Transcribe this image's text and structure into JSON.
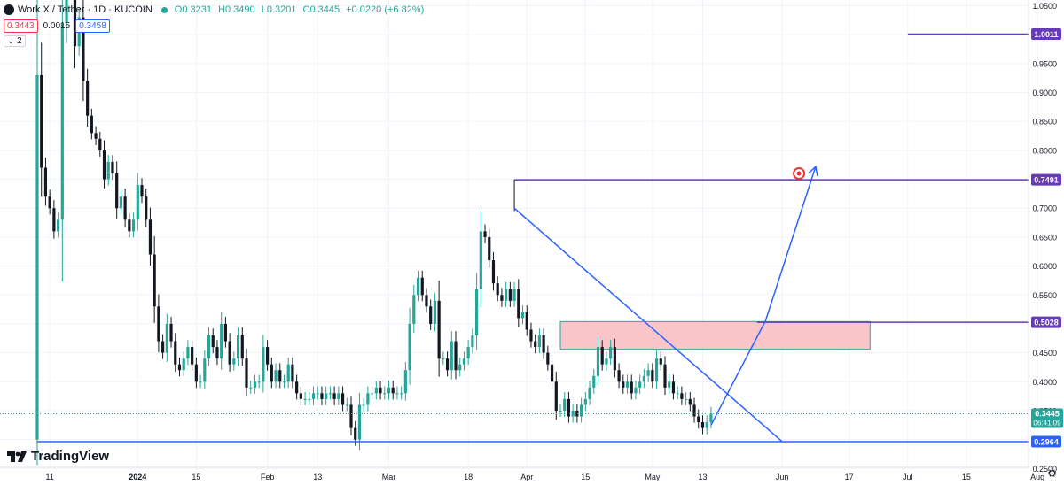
{
  "header": {
    "symbol": "Work X / Tether · 1D · KUCOIN",
    "open": "O0.3231",
    "high": "H0.3490",
    "low": "L0.3201",
    "close": "C0.3445",
    "change": "+0.0220 (+6.82%)",
    "sell_price": "0.3443",
    "spread": "0.0015",
    "buy_price": "0.3458",
    "indicator_count": "2"
  },
  "branding": {
    "name": "TradingView"
  },
  "colors": {
    "up": "#26a69a",
    "down": "#131722",
    "drawing": "#2962ff",
    "level": "#673ab7",
    "zone": "#f8bbc0",
    "zone_border": "#26a69a"
  },
  "chart_data": {
    "type": "candlestick",
    "symbol": "Work X / Tether",
    "timeframe": "1D",
    "exchange": "KUCOIN",
    "y_axis": {
      "range": [
        0.252,
        1.06
      ],
      "ticks": [
        "1.0500",
        "1.0000",
        "0.9500",
        "0.9000",
        "0.8500",
        "0.8000",
        "0.7500",
        "0.7000",
        "0.6500",
        "0.6000",
        "0.5500",
        "0.5000",
        "0.4500",
        "0.4000",
        "0.3500",
        "0.3000",
        "0.2500"
      ]
    },
    "x_axis": {
      "ticks": [
        {
          "label": "11",
          "index": 3
        },
        {
          "label": "2024",
          "index": 24
        },
        {
          "label": "15",
          "index": 38
        },
        {
          "label": "Feb",
          "index": 55
        },
        {
          "label": "13",
          "index": 67
        },
        {
          "label": "Mar",
          "index": 84
        },
        {
          "label": "18",
          "index": 103
        },
        {
          "label": "Apr",
          "index": 117
        },
        {
          "label": "15",
          "index": 131
        },
        {
          "label": "May",
          "index": 147
        },
        {
          "label": "13",
          "index": 159
        },
        {
          "label": "Jun",
          "index": 178
        },
        {
          "label": "17",
          "index": 194
        },
        {
          "label": "Jul",
          "index": 208
        },
        {
          "label": "15",
          "index": 222
        },
        {
          "label": "Aug",
          "index": 239
        }
      ]
    },
    "close_series": [
      0.93,
      0.77,
      0.72,
      0.7,
      0.66,
      0.68,
      1.02,
      1.13,
      1.1,
      0.98,
      1.03,
      0.92,
      0.86,
      0.83,
      0.82,
      0.8,
      0.75,
      0.78,
      0.76,
      0.7,
      0.72,
      0.68,
      0.66,
      0.68,
      0.74,
      0.72,
      0.68,
      0.62,
      0.53,
      0.47,
      0.45,
      0.5,
      0.47,
      0.43,
      0.42,
      0.44,
      0.46,
      0.43,
      0.4,
      0.4,
      0.44,
      0.48,
      0.46,
      0.44,
      0.5,
      0.47,
      0.43,
      0.44,
      0.48,
      0.44,
      0.39,
      0.39,
      0.4,
      0.4,
      0.46,
      0.43,
      0.4,
      0.42,
      0.4,
      0.4,
      0.43,
      0.4,
      0.38,
      0.37,
      0.37,
      0.37,
      0.38,
      0.38,
      0.37,
      0.38,
      0.38,
      0.37,
      0.38,
      0.36,
      0.36,
      0.32,
      0.3,
      0.36,
      0.36,
      0.38,
      0.38,
      0.39,
      0.38,
      0.38,
      0.39,
      0.38,
      0.38,
      0.38,
      0.42,
      0.5,
      0.55,
      0.58,
      0.55,
      0.53,
      0.5,
      0.54,
      0.44,
      0.44,
      0.42,
      0.47,
      0.42,
      0.43,
      0.44,
      0.46,
      0.48,
      0.56,
      0.66,
      0.65,
      0.61,
      0.57,
      0.55,
      0.54,
      0.56,
      0.54,
      0.56,
      0.51,
      0.52,
      0.49,
      0.47,
      0.46,
      0.48,
      0.45,
      0.43,
      0.4,
      0.35,
      0.35,
      0.37,
      0.34,
      0.35,
      0.34,
      0.36,
      0.37,
      0.39,
      0.41,
      0.46,
      0.43,
      0.44,
      0.46,
      0.42,
      0.4,
      0.39,
      0.4,
      0.38,
      0.39,
      0.4,
      0.41,
      0.42,
      0.4,
      0.44,
      0.43,
      0.39,
      0.4,
      0.38,
      0.38,
      0.37,
      0.37,
      0.36,
      0.34,
      0.33,
      0.32,
      0.33,
      0.3445
    ],
    "current_price": {
      "label": "0.3445",
      "countdown": "06:41:09",
      "value": 0.3445
    },
    "levels": [
      {
        "label": "1.0011",
        "value": 1.0011,
        "from_index": 208
      },
      {
        "label": "0.7491",
        "value": 0.7491,
        "from_index": 114
      },
      {
        "label": "0.5028",
        "value": 0.5028,
        "from_index": 172
      },
      {
        "label": "0.2964",
        "value": 0.2964,
        "from_index": 0
      }
    ],
    "zone": {
      "from_index": 125,
      "to_index": 199,
      "top": 0.504,
      "bottom": 0.456
    },
    "trendline": {
      "from_index": 114,
      "from_value": 0.7,
      "to_index": 178,
      "to_value": 0.2964
    },
    "projection": [
      {
        "index": 161,
        "value": 0.325
      },
      {
        "index": 174,
        "value": 0.505
      },
      {
        "index": 186,
        "value": 0.772
      }
    ],
    "target_marker": {
      "index": 182,
      "value": 0.76
    }
  }
}
